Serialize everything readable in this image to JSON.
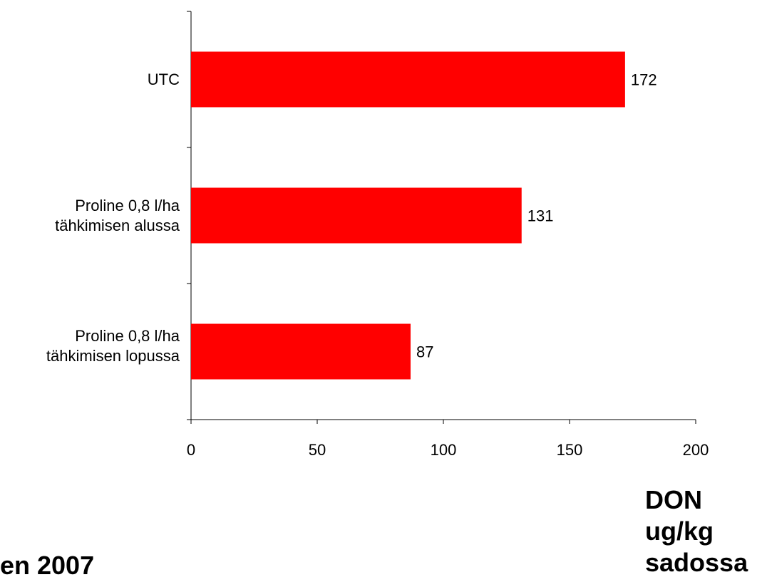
{
  "chart_data": {
    "type": "bar",
    "orientation": "horizontal",
    "categories": [
      [
        "UTC"
      ],
      [
        "Proline 0,8 l/ha",
        "tähkimisen alussa"
      ],
      [
        "Proline 0,8 l/ha",
        "tähkimisen lopussa"
      ]
    ],
    "values": [
      172,
      131,
      87
    ],
    "xlim": [
      0,
      200
    ],
    "xticks": [
      "0",
      "50",
      "100",
      "150",
      "200"
    ],
    "xlabel": [
      "DON",
      "ug/kg",
      "sadossa"
    ],
    "bar_color": "#ff0000",
    "grid": false,
    "legend": "none"
  },
  "footer": {
    "text": "en 2007"
  }
}
